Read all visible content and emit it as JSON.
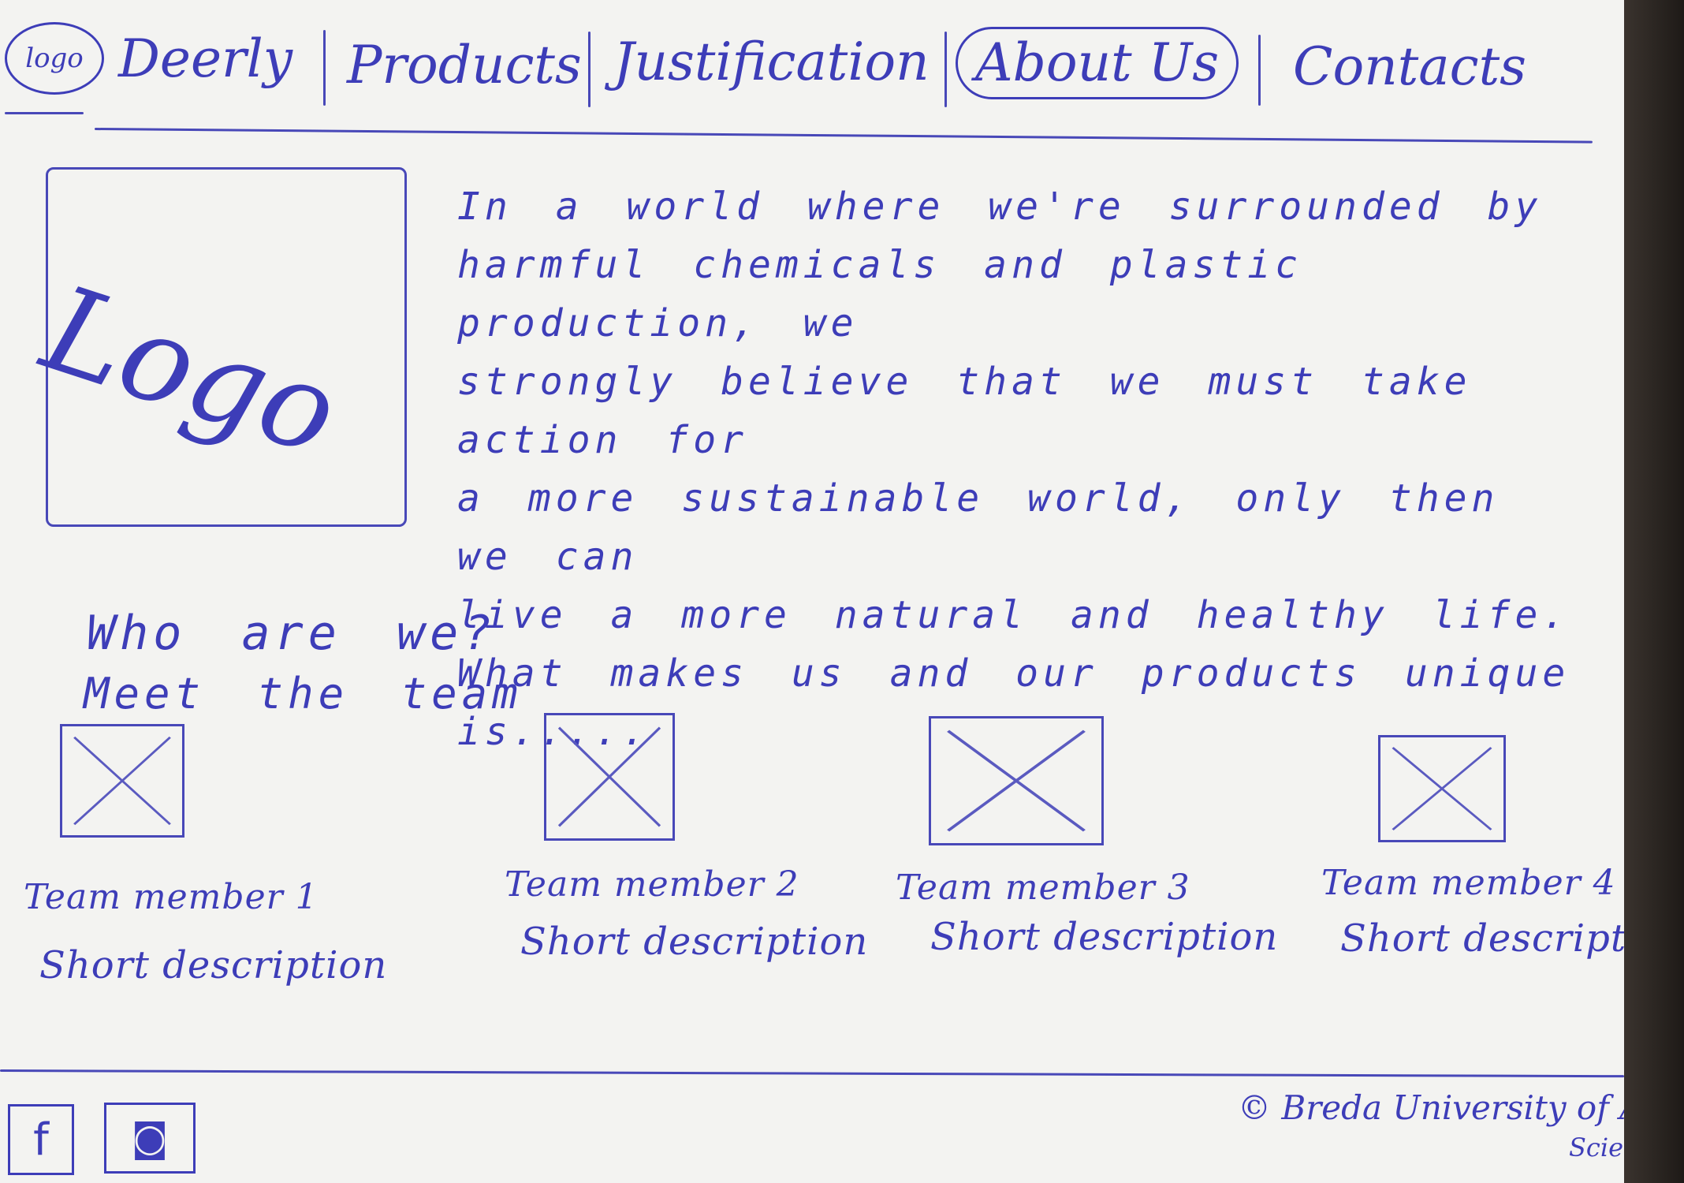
{
  "nav": {
    "logo_label": "logo",
    "items": [
      {
        "label": "Deerly"
      },
      {
        "label": "Products"
      },
      {
        "label": "Justification"
      },
      {
        "label": "About Us"
      },
      {
        "label": "Contacts"
      }
    ],
    "active_item": "About Us"
  },
  "hero": {
    "logo_text": "Logo",
    "intro_lines": [
      "In a world where we're surrounded by",
      "harmful chemicals and plastic production, we",
      "strongly believe that we must take action for",
      "a more sustainable world, only then we can",
      "live a more natural and healthy life.",
      "What makes us and our products unique is....."
    ]
  },
  "team_section": {
    "heading": "Who are we?",
    "subheading": "Meet the team",
    "members": [
      {
        "name": "Team member 1",
        "description": "Short description"
      },
      {
        "name": "Team member 2",
        "description": "Short description"
      },
      {
        "name": "Team member 3",
        "description": "Short description"
      },
      {
        "name": "Team member 4",
        "description": "Short description"
      }
    ]
  },
  "footer": {
    "social": [
      {
        "icon": "facebook-icon",
        "glyph": "f"
      },
      {
        "icon": "instagram-icon",
        "glyph": "◙"
      }
    ],
    "copyright": "© Breda University of Applied",
    "copyright_tail": "Scienc"
  },
  "colors": {
    "ink": "#3d3db8",
    "paper": "#f3f3f1"
  }
}
